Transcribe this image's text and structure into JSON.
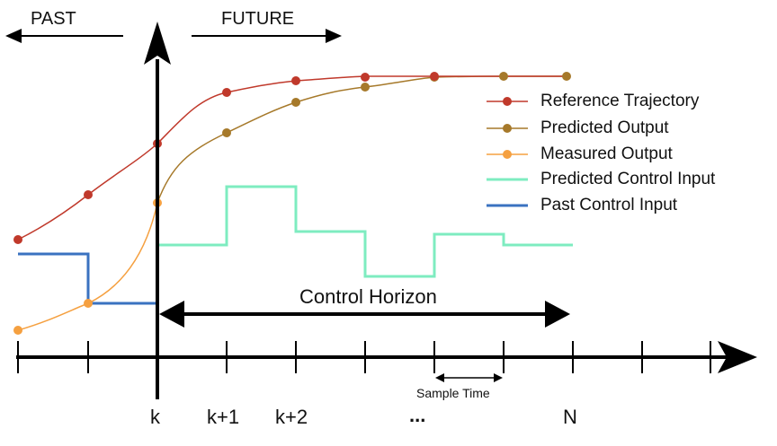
{
  "header": {
    "past": "PAST",
    "future": "FUTURE"
  },
  "ticks": {
    "k": "k",
    "k1": "k+1",
    "k2": "k+2",
    "dots": "...",
    "n": "N"
  },
  "annotations": {
    "control_horizon": "Control Horizon",
    "sample_time": "Sample Time"
  },
  "legend": [
    {
      "label": "Reference Trajectory",
      "color": "#c0392b",
      "marker": "dot"
    },
    {
      "label": "Predicted Output",
      "color": "#a6792a",
      "marker": "dot"
    },
    {
      "label": "Measured Output",
      "color": "#f5a040",
      "marker": "dot"
    },
    {
      "label": "Predicted Control Input",
      "color": "#7eecc0",
      "marker": "line"
    },
    {
      "label": "Past Control Input",
      "color": "#3a72c0",
      "marker": "line"
    }
  ],
  "colors": {
    "reference": "#c0392b",
    "predicted_output": "#a6792a",
    "measured_output": "#f5a040",
    "predicted_input": "#7eecc0",
    "past_input": "#3a72c0",
    "axis": "#000000"
  }
}
